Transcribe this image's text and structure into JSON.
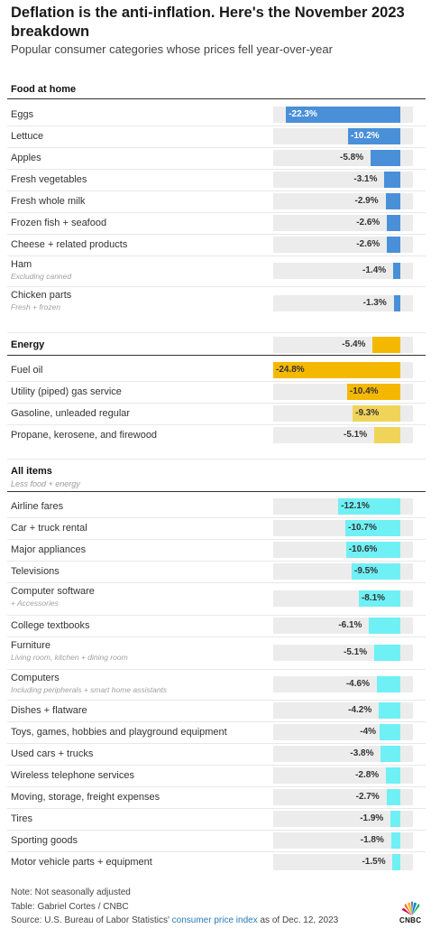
{
  "header": {
    "title": "Deflation is the anti-inflation. Here's the November 2023 breakdown",
    "subtitle": "Popular consumer categories whose prices fell year-over-year"
  },
  "colors": {
    "food": "#4a90d9",
    "energy_dark": "#f5b800",
    "energy_light": "#f0d45a",
    "all_items": "#6ff0f5"
  },
  "chart_data": {
    "type": "bar",
    "orientation": "horizontal",
    "value_unit": "%",
    "xlim": [
      -24.8,
      0
    ],
    "groups": [
      {
        "name": "Food at home",
        "subtitle": "",
        "total": null,
        "rows": [
          {
            "label": "Eggs",
            "sub": "",
            "value": -22.3,
            "display": "-22.3%"
          },
          {
            "label": "Lettuce",
            "sub": "",
            "value": -10.2,
            "display": "-10.2%"
          },
          {
            "label": "Apples",
            "sub": "",
            "value": -5.8,
            "display": "-5.8%"
          },
          {
            "label": "Fresh vegetables",
            "sub": "",
            "value": -3.1,
            "display": "-3.1%"
          },
          {
            "label": "Fresh whole milk",
            "sub": "",
            "value": -2.9,
            "display": "-2.9%"
          },
          {
            "label": "Frozen fish + seafood",
            "sub": "",
            "value": -2.6,
            "display": "-2.6%"
          },
          {
            "label": "Cheese + related products",
            "sub": "",
            "value": -2.6,
            "display": "-2.6%"
          },
          {
            "label": "Ham",
            "sub": "Excluding canned",
            "value": -1.4,
            "display": "-1.4%"
          },
          {
            "label": "Chicken parts",
            "sub": "Fresh + frozen",
            "value": -1.3,
            "display": "-1.3%"
          }
        ]
      },
      {
        "name": "Energy",
        "subtitle": "",
        "total": {
          "value": -5.4,
          "display": "-5.4%"
        },
        "rows": [
          {
            "label": "Fuel oil",
            "sub": "",
            "value": -24.8,
            "display": "-24.8%"
          },
          {
            "label": "Utility (piped) gas service",
            "sub": "",
            "value": -10.4,
            "display": "-10.4%"
          },
          {
            "label": "Gasoline, unleaded regular",
            "sub": "",
            "value": -9.3,
            "display": "-9.3%"
          },
          {
            "label": "Propane, kerosene, and firewood",
            "sub": "",
            "value": -5.1,
            "display": "-5.1%"
          }
        ]
      },
      {
        "name": "All items",
        "subtitle": "Less food + energy",
        "total": null,
        "rows": [
          {
            "label": "Airline fares",
            "sub": "",
            "value": -12.1,
            "display": "-12.1%"
          },
          {
            "label": "Car + truck rental",
            "sub": "",
            "value": -10.7,
            "display": "-10.7%"
          },
          {
            "label": "Major appliances",
            "sub": "",
            "value": -10.6,
            "display": "-10.6%"
          },
          {
            "label": "Televisions",
            "sub": "",
            "value": -9.5,
            "display": "-9.5%"
          },
          {
            "label": "Computer software",
            "sub": "+ Accessories",
            "value": -8.1,
            "display": "-8.1%"
          },
          {
            "label": "College textbooks",
            "sub": "",
            "value": -6.1,
            "display": "-6.1%"
          },
          {
            "label": "Furniture",
            "sub": "Living room, kitchen + dining room",
            "value": -5.1,
            "display": "-5.1%"
          },
          {
            "label": "Computers",
            "sub": "Including peripherals + smart home assistants",
            "value": -4.6,
            "display": "-4.6%"
          },
          {
            "label": "Dishes + flatware",
            "sub": "",
            "value": -4.2,
            "display": "-4.2%"
          },
          {
            "label": "Toys, games, hobbies and playground equipment",
            "sub": "",
            "value": -4,
            "display": "-4%"
          },
          {
            "label": "Used cars + trucks",
            "sub": "",
            "value": -3.8,
            "display": "-3.8%"
          },
          {
            "label": "Wireless telephone services",
            "sub": "",
            "value": -2.8,
            "display": "-2.8%"
          },
          {
            "label": "Moving, storage, freight expenses",
            "sub": "",
            "value": -2.7,
            "display": "-2.7%"
          },
          {
            "label": "Tires",
            "sub": "",
            "value": -1.9,
            "display": "-1.9%"
          },
          {
            "label": "Sporting goods",
            "sub": "",
            "value": -1.8,
            "display": "-1.8%"
          },
          {
            "label": "Motor vehicle parts + equipment",
            "sub": "",
            "value": -1.5,
            "display": "-1.5%"
          }
        ]
      }
    ]
  },
  "footer": {
    "note": "Note: Not seasonally adjusted",
    "table_credit": "Table: Gabriel Cortes / CNBC",
    "source_prefix": "Source: U.S. Bureau of Labor Statistics'",
    "source_link": "consumer price index",
    "source_suffix": "as of Dec. 12, 2023",
    "logo_text": "CNBC"
  }
}
